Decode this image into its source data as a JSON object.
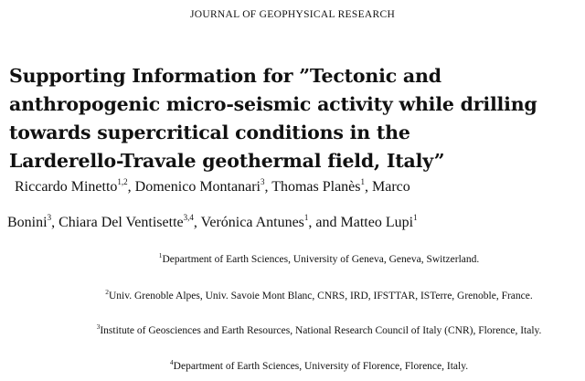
{
  "journal": "JOURNAL OF GEOPHYSICAL RESEARCH",
  "title_lines": [
    "Supporting Information for ”Tectonic and",
    "anthropogenic micro-seismic activity while drilling",
    "towards supercritical conditions in the",
    "Larderello-Travale geothermal field, Italy”"
  ],
  "authors": [
    {
      "name": "Riccardo Minetto",
      "aff": "1,2"
    },
    {
      "name": "Domenico Montanari",
      "aff": "3"
    },
    {
      "name": "Thomas Planès",
      "aff": "1"
    },
    {
      "name": "Marco Bonini",
      "aff": "3"
    },
    {
      "name": "Chiara Del Ventisette",
      "aff": "3,4"
    },
    {
      "name": "Verónica Antunes",
      "aff": "1"
    },
    {
      "name": "Matteo Lupi",
      "aff": "1"
    }
  ],
  "author_text": {
    "marco_first": "Marco",
    "bonini_last": "Bonini",
    "and": "and"
  },
  "affiliations": [
    {
      "num": "1",
      "text": "Department of Earth Sciences, University of Geneva, Geneva, Switzerland."
    },
    {
      "num": "2",
      "text": "Univ. Grenoble Alpes, Univ. Savoie Mont Blanc, CNRS, IRD, IFSTTAR, ISTerre, Grenoble, France."
    },
    {
      "num": "3",
      "text": "Institute of Geosciences and Earth Resources, National Research Council of Italy (CNR), Florence, Italy."
    },
    {
      "num": "4",
      "text": "Department of Earth Sciences, University of Florence, Florence, Italy."
    }
  ]
}
